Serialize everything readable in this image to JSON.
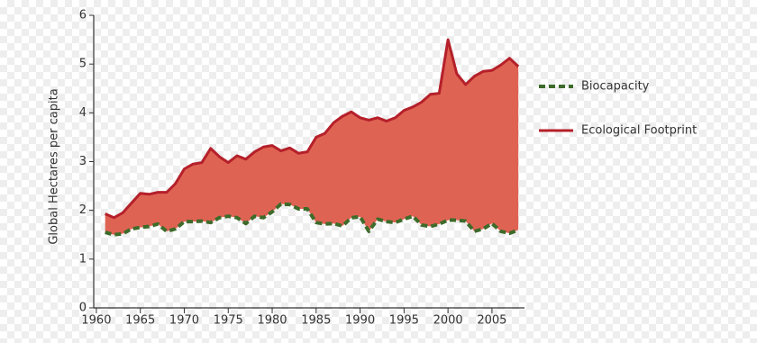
{
  "chart_data": {
    "type": "line",
    "y_label": "Global Hectares per capita",
    "x": [
      1961,
      1962,
      1963,
      1964,
      1965,
      1966,
      1967,
      1968,
      1969,
      1970,
      1971,
      1972,
      1973,
      1974,
      1975,
      1976,
      1977,
      1978,
      1979,
      1980,
      1981,
      1982,
      1983,
      1984,
      1985,
      1986,
      1987,
      1988,
      1989,
      1990,
      1991,
      1992,
      1993,
      1994,
      1995,
      1996,
      1997,
      1998,
      1999,
      2000,
      2001,
      2002,
      2003,
      2004,
      2005,
      2006,
      2007,
      2008
    ],
    "series": [
      {
        "name": "Biocapacity",
        "color": "#3d6b2a",
        "line_style": "dashed",
        "values": [
          1.55,
          1.5,
          1.52,
          1.62,
          1.65,
          1.67,
          1.72,
          1.57,
          1.62,
          1.77,
          1.77,
          1.78,
          1.75,
          1.85,
          1.88,
          1.85,
          1.73,
          1.88,
          1.85,
          1.97,
          2.13,
          2.12,
          2.03,
          2.03,
          1.75,
          1.72,
          1.73,
          1.68,
          1.85,
          1.87,
          1.57,
          1.82,
          1.77,
          1.75,
          1.82,
          1.88,
          1.7,
          1.67,
          1.72,
          1.8,
          1.8,
          1.78,
          1.57,
          1.62,
          1.73,
          1.57,
          1.53,
          1.6
        ]
      },
      {
        "name": "Ecological Footprint",
        "color": "#b5202a",
        "line_style": "solid",
        "values": [
          1.93,
          1.85,
          1.95,
          2.15,
          2.35,
          2.33,
          2.37,
          2.37,
          2.55,
          2.85,
          2.95,
          2.98,
          3.27,
          3.1,
          2.98,
          3.12,
          3.05,
          3.2,
          3.3,
          3.33,
          3.22,
          3.28,
          3.17,
          3.2,
          3.5,
          3.58,
          3.8,
          3.93,
          4.02,
          3.9,
          3.85,
          3.9,
          3.83,
          3.9,
          4.05,
          4.12,
          4.22,
          4.38,
          4.4,
          5.5,
          4.8,
          4.58,
          4.75,
          4.85,
          4.87,
          4.98,
          5.12,
          4.95
        ]
      }
    ],
    "fill_between_color": "#df6353",
    "xlim": [
      1959.7,
      2008.7
    ],
    "xticks": [
      1960,
      1965,
      1970,
      1975,
      1980,
      1985,
      1990,
      1995,
      2000,
      2005
    ],
    "ylim": [
      0,
      6
    ],
    "yticks": [
      0,
      1,
      2,
      3,
      4,
      5,
      6
    ],
    "legend": "right"
  }
}
